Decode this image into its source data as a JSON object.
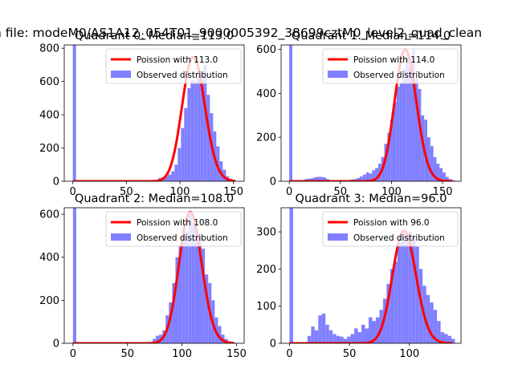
{
  "figure": {
    "suptitle": "n file: modeM0/AS1A12_054T01_9000005392_38699cztM0_level2_quad_clean"
  },
  "colors": {
    "poisson": "#ff0000",
    "observed": "#8080ff"
  },
  "chart_data": [
    {
      "type": "bar+line",
      "title": "Quadrant 0: Median=113.0",
      "xlim": [
        -8,
        160
      ],
      "ylim": [
        0,
        820
      ],
      "xticks": [
        0,
        50,
        100,
        150
      ],
      "yticks": [
        0,
        200,
        400,
        600,
        800
      ],
      "legend": {
        "position": "top-right",
        "entries": [
          "Poission with 113.0",
          "Observed distribution"
        ]
      },
      "poisson_mean": 113.0,
      "poisson_peak": 748,
      "poisson_range": [
        0,
        152
      ],
      "hist_width": 3.0,
      "hist_x": [
        0,
        80,
        83,
        86,
        89,
        92,
        95,
        98,
        101,
        104,
        107,
        110,
        113,
        116,
        119,
        122,
        125,
        128,
        131,
        134,
        137,
        140,
        143,
        146,
        149
      ],
      "hist_y": [
        2200,
        20,
        25,
        30,
        40,
        60,
        100,
        200,
        320,
        440,
        560,
        610,
        600,
        660,
        610,
        700,
        520,
        410,
        300,
        210,
        120,
        70,
        30,
        15,
        5
      ]
    },
    {
      "type": "bar+line",
      "title": "Quadrant 1: Median=114.0",
      "xlim": [
        -8,
        168
      ],
      "ylim": [
        0,
        620
      ],
      "xticks": [
        0,
        50,
        100,
        150
      ],
      "yticks": [
        0,
        200,
        400,
        600
      ],
      "legend": {
        "position": "top-right",
        "entries": [
          "Poission with 114.0",
          "Observed distribution"
        ]
      },
      "poisson_mean": 114.0,
      "poisson_peak": 598,
      "poisson_range": [
        0,
        160
      ],
      "hist_width": 3.0,
      "hist_x": [
        0,
        15,
        18,
        21,
        24,
        27,
        30,
        33,
        36,
        39,
        42,
        45,
        48,
        51,
        54,
        57,
        60,
        63,
        66,
        69,
        72,
        75,
        78,
        81,
        84,
        87,
        90,
        93,
        96,
        99,
        102,
        105,
        108,
        111,
        114,
        117,
        120,
        123,
        126,
        129,
        132,
        135,
        138,
        141,
        144,
        147,
        150,
        153,
        156,
        159
      ],
      "hist_y": [
        1500,
        10,
        12,
        14,
        18,
        20,
        20,
        18,
        10,
        5,
        5,
        5,
        5,
        5,
        5,
        5,
        8,
        10,
        15,
        22,
        30,
        40,
        35,
        50,
        60,
        80,
        110,
        170,
        220,
        280,
        360,
        430,
        450,
        510,
        560,
        520,
        600,
        470,
        420,
        300,
        280,
        200,
        160,
        110,
        80,
        60,
        40,
        20,
        10,
        5
      ]
    },
    {
      "type": "bar+line",
      "title": "Quadrant 2: Median=108.0",
      "xlim": [
        -8,
        157
      ],
      "ylim": [
        0,
        630
      ],
      "xticks": [
        0,
        50,
        100,
        150
      ],
      "yticks": [
        0,
        200,
        400,
        600
      ],
      "legend": {
        "position": "top-right",
        "entries": [
          "Poission with 108.0",
          "Observed distribution"
        ]
      },
      "poisson_mean": 108.0,
      "poisson_peak": 610,
      "poisson_range": [
        0,
        148
      ],
      "hist_width": 3.0,
      "hist_x": [
        0,
        70,
        73,
        76,
        79,
        82,
        85,
        88,
        91,
        94,
        97,
        100,
        103,
        106,
        109,
        112,
        115,
        118,
        121,
        124,
        127,
        130,
        133,
        136,
        139,
        142,
        145
      ],
      "hist_y": [
        1400,
        5,
        20,
        35,
        40,
        60,
        130,
        190,
        280,
        400,
        460,
        540,
        520,
        600,
        560,
        530,
        500,
        440,
        320,
        280,
        200,
        120,
        80,
        40,
        20,
        10,
        5
      ]
    },
    {
      "type": "bar+line",
      "title": "Quadrant 3: Median=96.0",
      "xlim": [
        -7,
        143
      ],
      "ylim": [
        0,
        365
      ],
      "xticks": [
        0,
        50,
        100
      ],
      "yticks": [
        0,
        100,
        200,
        300
      ],
      "legend": {
        "position": "top-right",
        "entries": [
          "Poission with 96.0",
          "Observed distribution"
        ]
      },
      "poisson_mean": 96.0,
      "poisson_peak": 303,
      "poisson_range": [
        0,
        136
      ],
      "hist_width": 3.0,
      "hist_x": [
        0,
        15,
        18,
        21,
        24,
        27,
        30,
        33,
        36,
        39,
        42,
        45,
        48,
        51,
        54,
        57,
        60,
        63,
        66,
        69,
        72,
        75,
        78,
        81,
        84,
        87,
        90,
        93,
        96,
        99,
        102,
        105,
        108,
        111,
        114,
        117,
        120,
        123,
        126,
        129,
        132,
        135
      ],
      "hist_y": [
        900,
        20,
        45,
        35,
        75,
        80,
        50,
        35,
        25,
        20,
        18,
        12,
        18,
        25,
        40,
        30,
        50,
        40,
        70,
        60,
        70,
        90,
        120,
        160,
        200,
        220,
        270,
        300,
        290,
        300,
        290,
        260,
        200,
        155,
        130,
        110,
        90,
        60,
        30,
        25,
        20,
        12
      ]
    }
  ]
}
